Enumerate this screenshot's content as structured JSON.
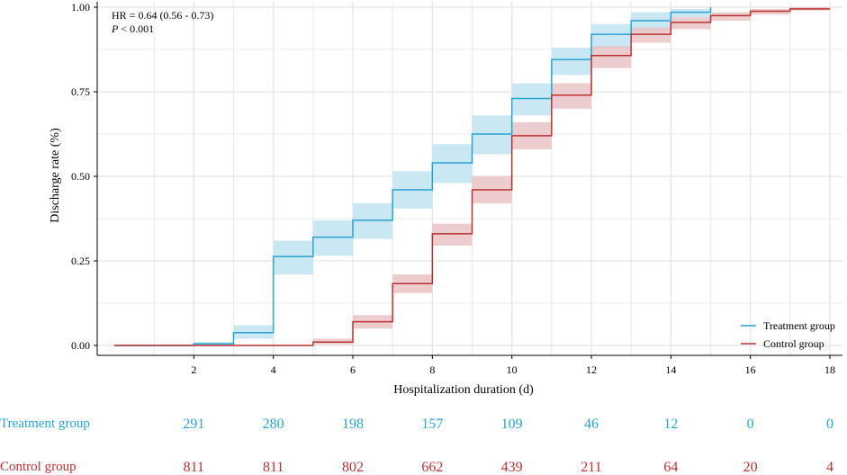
{
  "chart_data": {
    "type": "line",
    "subtype": "step (cumulative incidence with confidence bands)",
    "xlabel": "Hospitalization duration (d)",
    "ylabel": "Discharge rate (%)",
    "xlim": [
      0,
      18
    ],
    "ylim": [
      0,
      1
    ],
    "x_ticks": [
      "2",
      "4",
      "6",
      "8",
      "10",
      "12",
      "14",
      "16",
      "18"
    ],
    "y_ticks": [
      "0.00",
      "0.25",
      "0.50",
      "0.75",
      "1.00"
    ],
    "grid": true,
    "legend_position": "bottom-right",
    "annotation": {
      "hr_text": "HR = 0.64  (0.56  -  0.73)",
      "p_label": "P",
      "p_value": " < 0.001"
    },
    "series": [
      {
        "name": "Treatment group",
        "color": "#29A3D0",
        "band_color": "#BFE4F2",
        "x": [
          0,
          2,
          3,
          4,
          5,
          6,
          7,
          8,
          9,
          10,
          11,
          12,
          13,
          14,
          15
        ],
        "y": [
          0,
          0.005,
          0.038,
          0.263,
          0.32,
          0.37,
          0.46,
          0.54,
          0.625,
          0.73,
          0.845,
          0.92,
          0.96,
          0.985,
          1.0
        ],
        "lower": [
          0,
          0.001,
          0.02,
          0.21,
          0.265,
          0.315,
          0.405,
          0.48,
          0.565,
          0.68,
          0.8,
          0.88,
          0.93,
          0.97,
          1.0
        ],
        "upper": [
          0,
          0.01,
          0.06,
          0.31,
          0.37,
          0.42,
          0.515,
          0.595,
          0.68,
          0.775,
          0.88,
          0.95,
          0.985,
          0.995,
          1.0
        ],
        "end_x": 15
      },
      {
        "name": "Control group",
        "color": "#B83232",
        "band_color": "#E9C3C3",
        "x": [
          0,
          5,
          6,
          7,
          8,
          9,
          10,
          11,
          12,
          13,
          14,
          15,
          16,
          17
        ],
        "y": [
          0,
          0.01,
          0.07,
          0.183,
          0.33,
          0.46,
          0.62,
          0.74,
          0.857,
          0.92,
          0.955,
          0.975,
          0.988,
          0.995
        ],
        "lower": [
          0,
          0.003,
          0.05,
          0.155,
          0.295,
          0.42,
          0.58,
          0.7,
          0.82,
          0.895,
          0.935,
          0.96,
          0.978,
          0.99
        ],
        "upper": [
          0,
          0.02,
          0.09,
          0.21,
          0.36,
          0.5,
          0.66,
          0.775,
          0.885,
          0.94,
          0.97,
          0.985,
          0.995,
          1.0
        ],
        "end_x": 18
      }
    ],
    "risk_table": {
      "times": [
        2,
        4,
        6,
        8,
        10,
        12,
        14,
        16,
        18
      ],
      "rows": [
        {
          "label": "Treatment group",
          "color": "#29A3D0",
          "values": [
            "291",
            "280",
            "198",
            "157",
            "109",
            "46",
            "12",
            "0",
            "0"
          ]
        },
        {
          "label": "Control group",
          "color": "#B83232",
          "values": [
            "811",
            "811",
            "802",
            "662",
            "439",
            "211",
            "64",
            "20",
            "4"
          ]
        }
      ]
    }
  }
}
